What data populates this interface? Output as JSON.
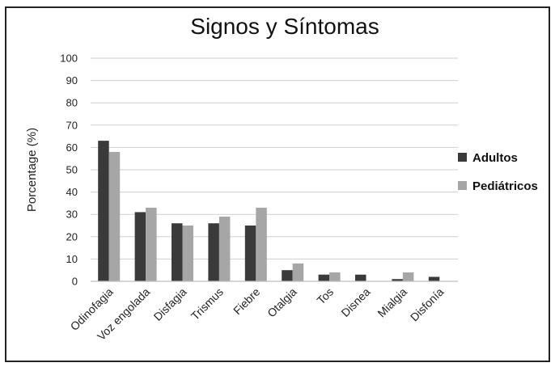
{
  "chart_data": {
    "type": "bar",
    "title": "Signos y Síntomas",
    "xlabel": "",
    "ylabel": "Porcentage (%)",
    "ylim": [
      0,
      100
    ],
    "yticks": [
      0,
      10,
      20,
      30,
      40,
      50,
      60,
      70,
      80,
      90,
      100
    ],
    "categories": [
      "Odinofagia",
      "Voz engolada",
      "Disfagia",
      "Trismus",
      "Fiebre",
      "Otalgia",
      "Tos",
      "Disnea",
      "Mialgia",
      "Disfonía"
    ],
    "series": [
      {
        "name": "Adultos",
        "color": "#3a3a3a",
        "values": [
          63,
          31,
          26,
          26,
          25,
          5,
          3,
          3,
          1,
          2
        ]
      },
      {
        "name": "Pediátricos",
        "color": "#a6a6a6",
        "values": [
          58,
          33,
          25,
          29,
          33,
          8,
          4,
          0,
          4,
          0
        ]
      }
    ],
    "grid": true,
    "legend": "right"
  }
}
